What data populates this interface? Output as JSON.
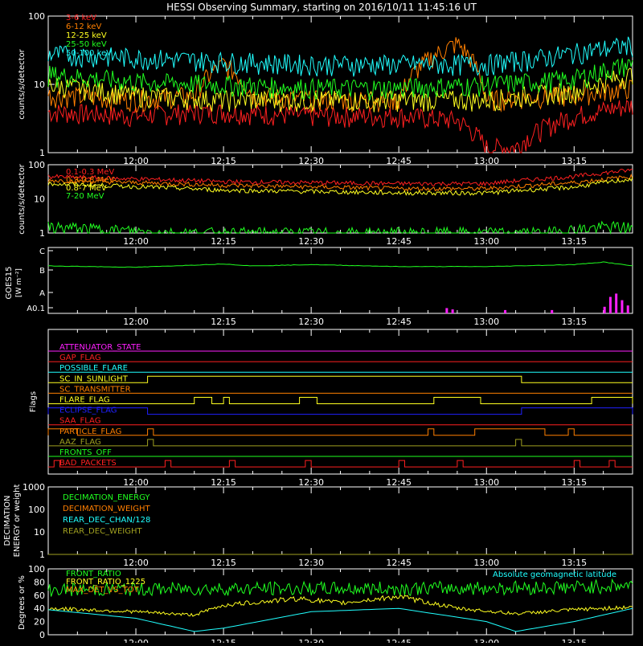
{
  "title": "HESSI Observing Summary, starting on 2016/10/11 11:45:16 UT",
  "time_axis": {
    "start": "11:45",
    "end": "13:25",
    "ticks": [
      "12:00",
      "12:15",
      "12:30",
      "12:45",
      "13:00",
      "13:15"
    ]
  },
  "chart_data": [
    {
      "type": "line",
      "id": "low_energy",
      "ylabel": "counts/s/detector",
      "ylim": [
        1,
        100
      ],
      "log_scale": true,
      "ytick_labels": [
        "1",
        "10",
        "100"
      ],
      "legend": [
        {
          "name": "3-6 keV",
          "color": "#ff2020"
        },
        {
          "name": "6-12 keV",
          "color": "#ff7f00"
        },
        {
          "name": "12-25 keV",
          "color": "#ffff20"
        },
        {
          "name": "25-50 keV",
          "color": "#20ff20"
        },
        {
          "name": "50-100 keV",
          "color": "#20ffff"
        }
      ],
      "series": [
        {
          "name": "3-6 keV",
          "color": "#ff2020",
          "x": [
            "11:45",
            "12:00",
            "12:10",
            "12:15",
            "12:30",
            "12:45",
            "12:55",
            "13:00",
            "13:05",
            "13:15",
            "13:25"
          ],
          "y": [
            4,
            3.5,
            4,
            4,
            3.5,
            3.5,
            3,
            1.2,
            1.2,
            3.5,
            5
          ]
        },
        {
          "name": "6-12 keV",
          "color": "#ff7f00",
          "x": [
            "11:45",
            "12:00",
            "12:10",
            "12:15",
            "12:20",
            "12:30",
            "12:45",
            "12:55",
            "13:00",
            "13:15",
            "13:25"
          ],
          "y": [
            7,
            6,
            7,
            20,
            7,
            6,
            6,
            40,
            6,
            7,
            9
          ]
        },
        {
          "name": "12-25 keV",
          "color": "#ffff20",
          "x": [
            "11:45",
            "12:00",
            "12:15",
            "12:30",
            "12:45",
            "13:00",
            "13:15",
            "13:25"
          ],
          "y": [
            10,
            7,
            6,
            6,
            6,
            6,
            8,
            14
          ]
        },
        {
          "name": "25-50 keV",
          "color": "#20ff20",
          "x": [
            "11:45",
            "12:00",
            "12:15",
            "12:30",
            "12:45",
            "13:00",
            "13:15",
            "13:25"
          ],
          "y": [
            14,
            11,
            10,
            9,
            9,
            10,
            12,
            20
          ]
        },
        {
          "name": "50-100 keV",
          "color": "#20ffff",
          "x": [
            "11:45",
            "12:00",
            "12:15",
            "12:30",
            "12:45",
            "13:00",
            "13:10",
            "13:25"
          ],
          "y": [
            28,
            25,
            22,
            20,
            20,
            20,
            25,
            38
          ]
        }
      ]
    },
    {
      "type": "line",
      "id": "high_energy",
      "ylabel": "counts/s/detector",
      "ylim": [
        1,
        100
      ],
      "log_scale": true,
      "ytick_labels": [
        "1",
        "10",
        "100"
      ],
      "legend": [
        {
          "name": "0.1-0.3 MeV",
          "color": "#ff2020"
        },
        {
          "name": "0.3-0.8 MeV",
          "color": "#ff7f00"
        },
        {
          "name": "0.8-7 MeV",
          "color": "#ffff20"
        },
        {
          "name": "7-20 MeV",
          "color": "#20ff20"
        }
      ],
      "series": [
        {
          "name": "0.1-0.3 MeV",
          "color": "#ff2020",
          "x": [
            "11:45",
            "12:15",
            "12:45",
            "13:00",
            "13:15",
            "13:25"
          ],
          "y": [
            45,
            32,
            28,
            28,
            45,
            70
          ]
        },
        {
          "name": "0.3-0.8 MeV",
          "color": "#ff7f00",
          "x": [
            "11:45",
            "12:15",
            "12:45",
            "13:00",
            "13:15",
            "13:25"
          ],
          "y": [
            35,
            25,
            20,
            20,
            30,
            45
          ]
        },
        {
          "name": "0.8-7 MeV",
          "color": "#ffff20",
          "x": [
            "11:45",
            "12:15",
            "12:45",
            "13:00",
            "13:15",
            "13:25"
          ],
          "y": [
            28,
            18,
            15,
            15,
            22,
            38
          ]
        },
        {
          "name": "7-20 MeV",
          "color": "#20ff20",
          "x": [
            "11:45",
            "12:05",
            "12:15",
            "13:10",
            "13:20",
            "13:25"
          ],
          "y": [
            1.5,
            1,
            1,
            1,
            1.5,
            1.5
          ]
        }
      ]
    },
    {
      "type": "line",
      "id": "goes",
      "ylabel": "GOES15",
      "ylabel2": "[W m⁻²]",
      "ytick_labels": [
        "A0.1",
        "A",
        "B",
        "C"
      ],
      "series": [
        {
          "name": "GOES long",
          "color": "#20ff20",
          "x": [
            "11:45",
            "12:00",
            "12:15",
            "12:20",
            "12:30",
            "12:45",
            "13:00",
            "13:15",
            "13:20",
            "13:25"
          ],
          "y": [
            0.72,
            0.7,
            0.75,
            0.72,
            0.74,
            0.71,
            0.71,
            0.74,
            0.78,
            0.72
          ]
        },
        {
          "name": "GOES short",
          "color": "#ff20ff",
          "x": [
            "12:53",
            "13:03",
            "13:11",
            "13:20",
            "13:22",
            "13:25"
          ],
          "y": [
            0.05,
            0.03,
            0.02,
            0.05,
            0.35,
            0.05
          ]
        }
      ]
    },
    {
      "type": "table",
      "id": "flags",
      "ylabel": "Flags",
      "rows": [
        {
          "label": "ATTENUATOR_STATE",
          "color": "#ff20ff",
          "on": []
        },
        {
          "label": "GAP_FLAG",
          "color": "#ff2020",
          "on": []
        },
        {
          "label": "POSSIBLE_FLARE",
          "color": "#20ffff",
          "on": []
        },
        {
          "label": "SC_IN_SUNLIGHT",
          "color": "#ffff20",
          "on": [
            [
              "12:02",
              "13:06"
            ]
          ]
        },
        {
          "label": "SC_TRANSMITTER",
          "color": "#ff7f00",
          "on": []
        },
        {
          "label": "FLARE_FLAG",
          "color": "#ffff20",
          "on": [
            [
              "12:10",
              "12:13"
            ],
            [
              "12:15",
              "12:16"
            ],
            [
              "12:28",
              "12:31"
            ],
            [
              "12:51",
              "12:59"
            ],
            [
              "13:18",
              "13:25"
            ]
          ]
        },
        {
          "label": "ECLIPSE_FLAG",
          "color": "#2020ff",
          "on": [
            [
              "11:45",
              "12:02"
            ],
            [
              "13:06",
              "13:25"
            ]
          ]
        },
        {
          "label": "SAA_FLAG",
          "color": "#ff2020",
          "on": []
        },
        {
          "label": "PARTICLE_FLAG",
          "color": "#ff7f00",
          "on": [
            [
              "11:45",
              "11:50"
            ],
            [
              "12:02",
              "12:03"
            ],
            [
              "12:50",
              "12:51"
            ],
            [
              "12:58",
              "13:10"
            ],
            [
              "13:14",
              "13:15"
            ]
          ]
        },
        {
          "label": "AAZ_FLAG",
          "color": "#a0a020",
          "on": [
            [
              "12:02",
              "12:03"
            ],
            [
              "13:05",
              "13:06"
            ]
          ]
        },
        {
          "label": "FRONTS_OFF",
          "color": "#20ff20",
          "on": []
        },
        {
          "label": "BAD_PACKETS",
          "color": "#ff2020",
          "on": [
            [
              "11:46",
              "11:47"
            ],
            [
              "12:05",
              "12:06"
            ],
            [
              "12:16",
              "12:17"
            ],
            [
              "12:29",
              "12:30"
            ],
            [
              "12:45",
              "12:46"
            ],
            [
              "12:55",
              "12:56"
            ],
            [
              "13:15",
              "13:16"
            ],
            [
              "13:21",
              "13:22"
            ]
          ]
        }
      ]
    },
    {
      "type": "line",
      "id": "decimation",
      "ylabel": "DECIMATION",
      "ylabel2": "ENERGY or weight",
      "ylim": [
        1,
        1000
      ],
      "log_scale": true,
      "ytick_labels": [
        "1",
        "10",
        "100",
        "1000"
      ],
      "legend": [
        {
          "name": "DECIMATION_ENERGY",
          "color": "#20ff20"
        },
        {
          "name": "DECIMATION_WEIGHT",
          "color": "#ff7f00"
        },
        {
          "name": "REAR_DEC_CHAN/128",
          "color": "#20ffff"
        },
        {
          "name": "REAR_DEC_WEIGHT",
          "color": "#a0a020"
        }
      ],
      "series": []
    },
    {
      "type": "line",
      "id": "ratio",
      "ylabel": "Degrees or %",
      "ylim": [
        0,
        100
      ],
      "ytick_labels": [
        "0",
        "20",
        "40",
        "60",
        "80",
        "100"
      ],
      "legend": [
        {
          "name": "FRONT_RATIO",
          "color": "#20ff20"
        },
        {
          "name": "FRONT_RATIO_1225",
          "color": "#ffff20"
        },
        {
          "name": "MAX_DET_VS_TOT",
          "color": "#ff7f00"
        }
      ],
      "legend_right": {
        "name": "Absolute geomagnetic latitude",
        "color": "#20ffff"
      },
      "series": [
        {
          "name": "FRONT_RATIO",
          "color": "#20ff20",
          "x": [
            "11:45",
            "12:15",
            "12:45",
            "13:15",
            "13:25"
          ],
          "y": [
            68,
            70,
            70,
            72,
            75
          ]
        },
        {
          "name": "FRONT_RATIO_1225",
          "color": "#ffff20",
          "x": [
            "11:45",
            "12:00",
            "12:10",
            "12:15",
            "12:28",
            "12:35",
            "12:45",
            "12:55",
            "13:05",
            "13:15",
            "13:25"
          ],
          "y": [
            40,
            35,
            30,
            45,
            55,
            48,
            58,
            40,
            32,
            38,
            42
          ]
        },
        {
          "name": "Absolute geomagnetic latitude",
          "color": "#20ffff",
          "x": [
            "11:45",
            "12:00",
            "12:10",
            "12:15",
            "12:30",
            "12:45",
            "13:00",
            "13:05",
            "13:15",
            "13:25"
          ],
          "y": [
            38,
            25,
            5,
            10,
            35,
            40,
            20,
            5,
            20,
            40
          ]
        }
      ]
    }
  ]
}
